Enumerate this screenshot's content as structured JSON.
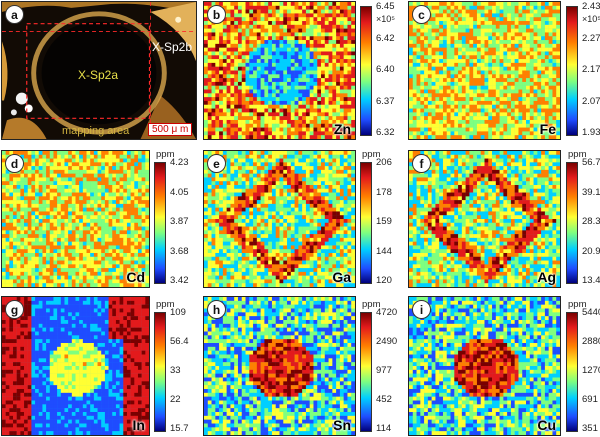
{
  "panel_a": {
    "label": "a",
    "text_sp2b": "X-Sp2b",
    "text_sp2a": "X-Sp2a",
    "text_mapping": "mapping area",
    "scale_bar": "500 μ m"
  },
  "panels": [
    {
      "id": "b",
      "label": "b",
      "element": "Zn",
      "unit": "",
      "exponent": "×10⁵",
      "ticks": [
        "6.45",
        "6.42",
        "6.40",
        "6.37",
        "6.32"
      ],
      "pattern": "core"
    },
    {
      "id": "c",
      "label": "c",
      "element": "Fe",
      "unit": "",
      "exponent": "×10⁵",
      "ticks": [
        "2.43",
        "2.27",
        "2.17",
        "2.07",
        "1.93"
      ],
      "pattern": "uniform"
    },
    {
      "id": "d",
      "label": "d",
      "element": "Cd",
      "unit": "ppm",
      "exponent": "",
      "ticks": [
        "4.23",
        "4.05",
        "3.87",
        "3.68",
        "3.42"
      ],
      "pattern": "uniform"
    },
    {
      "id": "e",
      "label": "e",
      "element": "Ga",
      "unit": "ppm",
      "exponent": "",
      "ticks": [
        "206",
        "178",
        "159",
        "144",
        "120"
      ],
      "pattern": "ring"
    },
    {
      "id": "f",
      "label": "f",
      "element": "Ag",
      "unit": "ppm",
      "exponent": "",
      "ticks": [
        "56.7",
        "39.1",
        "28.3",
        "20.9",
        "13.4"
      ],
      "pattern": "ring"
    },
    {
      "id": "g",
      "label": "g",
      "element": "In",
      "unit": "ppm",
      "exponent": "",
      "ticks": [
        "109",
        "56.4",
        "33",
        "22",
        "15.7"
      ],
      "pattern": "indium"
    },
    {
      "id": "h",
      "label": "h",
      "element": "Sn",
      "unit": "ppm",
      "exponent": "",
      "ticks": [
        "4720",
        "2490",
        "977",
        "452",
        "114"
      ],
      "pattern": "hot"
    },
    {
      "id": "i",
      "label": "i",
      "element": "Cu",
      "unit": "ppm",
      "exponent": "",
      "ticks": [
        "5440",
        "2880",
        "1270",
        "691",
        "351"
      ],
      "pattern": "hot"
    }
  ]
}
